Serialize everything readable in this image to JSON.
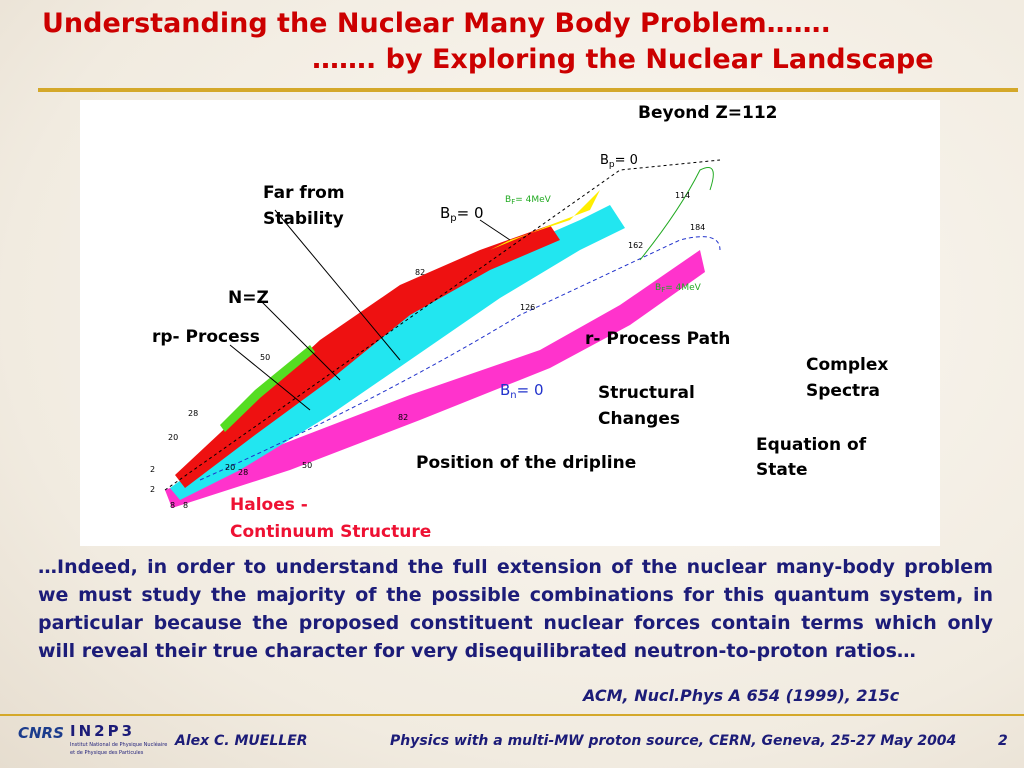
{
  "title": {
    "line1": "Understanding the Nuclear Many Body Problem…….",
    "line2": "……. by Exploring the Nuclear Landscape"
  },
  "figure": {
    "labels": [
      "Beyond Z=112",
      "Far from",
      "Stability",
      "N=Z",
      "rp- Process",
      "r- Process Path",
      "Complex",
      "Spectra",
      "Structural",
      "Changes",
      "Equation of",
      "State",
      "Position of the dripline"
    ],
    "haloes": [
      "Haloes -",
      "Continuum Structure"
    ],
    "separation": [
      {
        "main": "B",
        "sub": "p",
        "rest": "= 0"
      },
      {
        "main": "B",
        "sub": "p",
        "rest": "= 0"
      },
      {
        "main": "B",
        "sub": "F",
        "rest": "= 4MeV"
      },
      {
        "main": "B",
        "sub": "F",
        "rest": "= 4MeV"
      },
      {
        "main": "B",
        "sub": "n",
        "rest": "= 0"
      }
    ],
    "magic": [
      "2",
      "8",
      "2",
      "8",
      "20",
      "20",
      "28",
      "28",
      "50",
      "50",
      "82",
      "82",
      "126",
      "114",
      "162",
      "184"
    ]
  },
  "body": "…Indeed, in order to understand the full extension of the nuclear many-body problem we must study the majority of the possible combinations for this quantum system, in particular because the proposed constituent nuclear forces contain terms which only will reveal their true character for very disequilibrated neutron-to-proton ratios…",
  "citation": "ACM, Nucl.Phys A 654 (1999), 215c",
  "footer": {
    "logo_cnrs": "CNRS",
    "logo_in2p3": "IN2P3",
    "institute_line1": "Institut National de Physique Nucléaire",
    "institute_line2": "et de Physique des Particules",
    "author": "Alex C. MUELLER",
    "event": "Physics with a multi-MW proton source, CERN, Geneva, 25-27 May 2004",
    "page": "2"
  }
}
